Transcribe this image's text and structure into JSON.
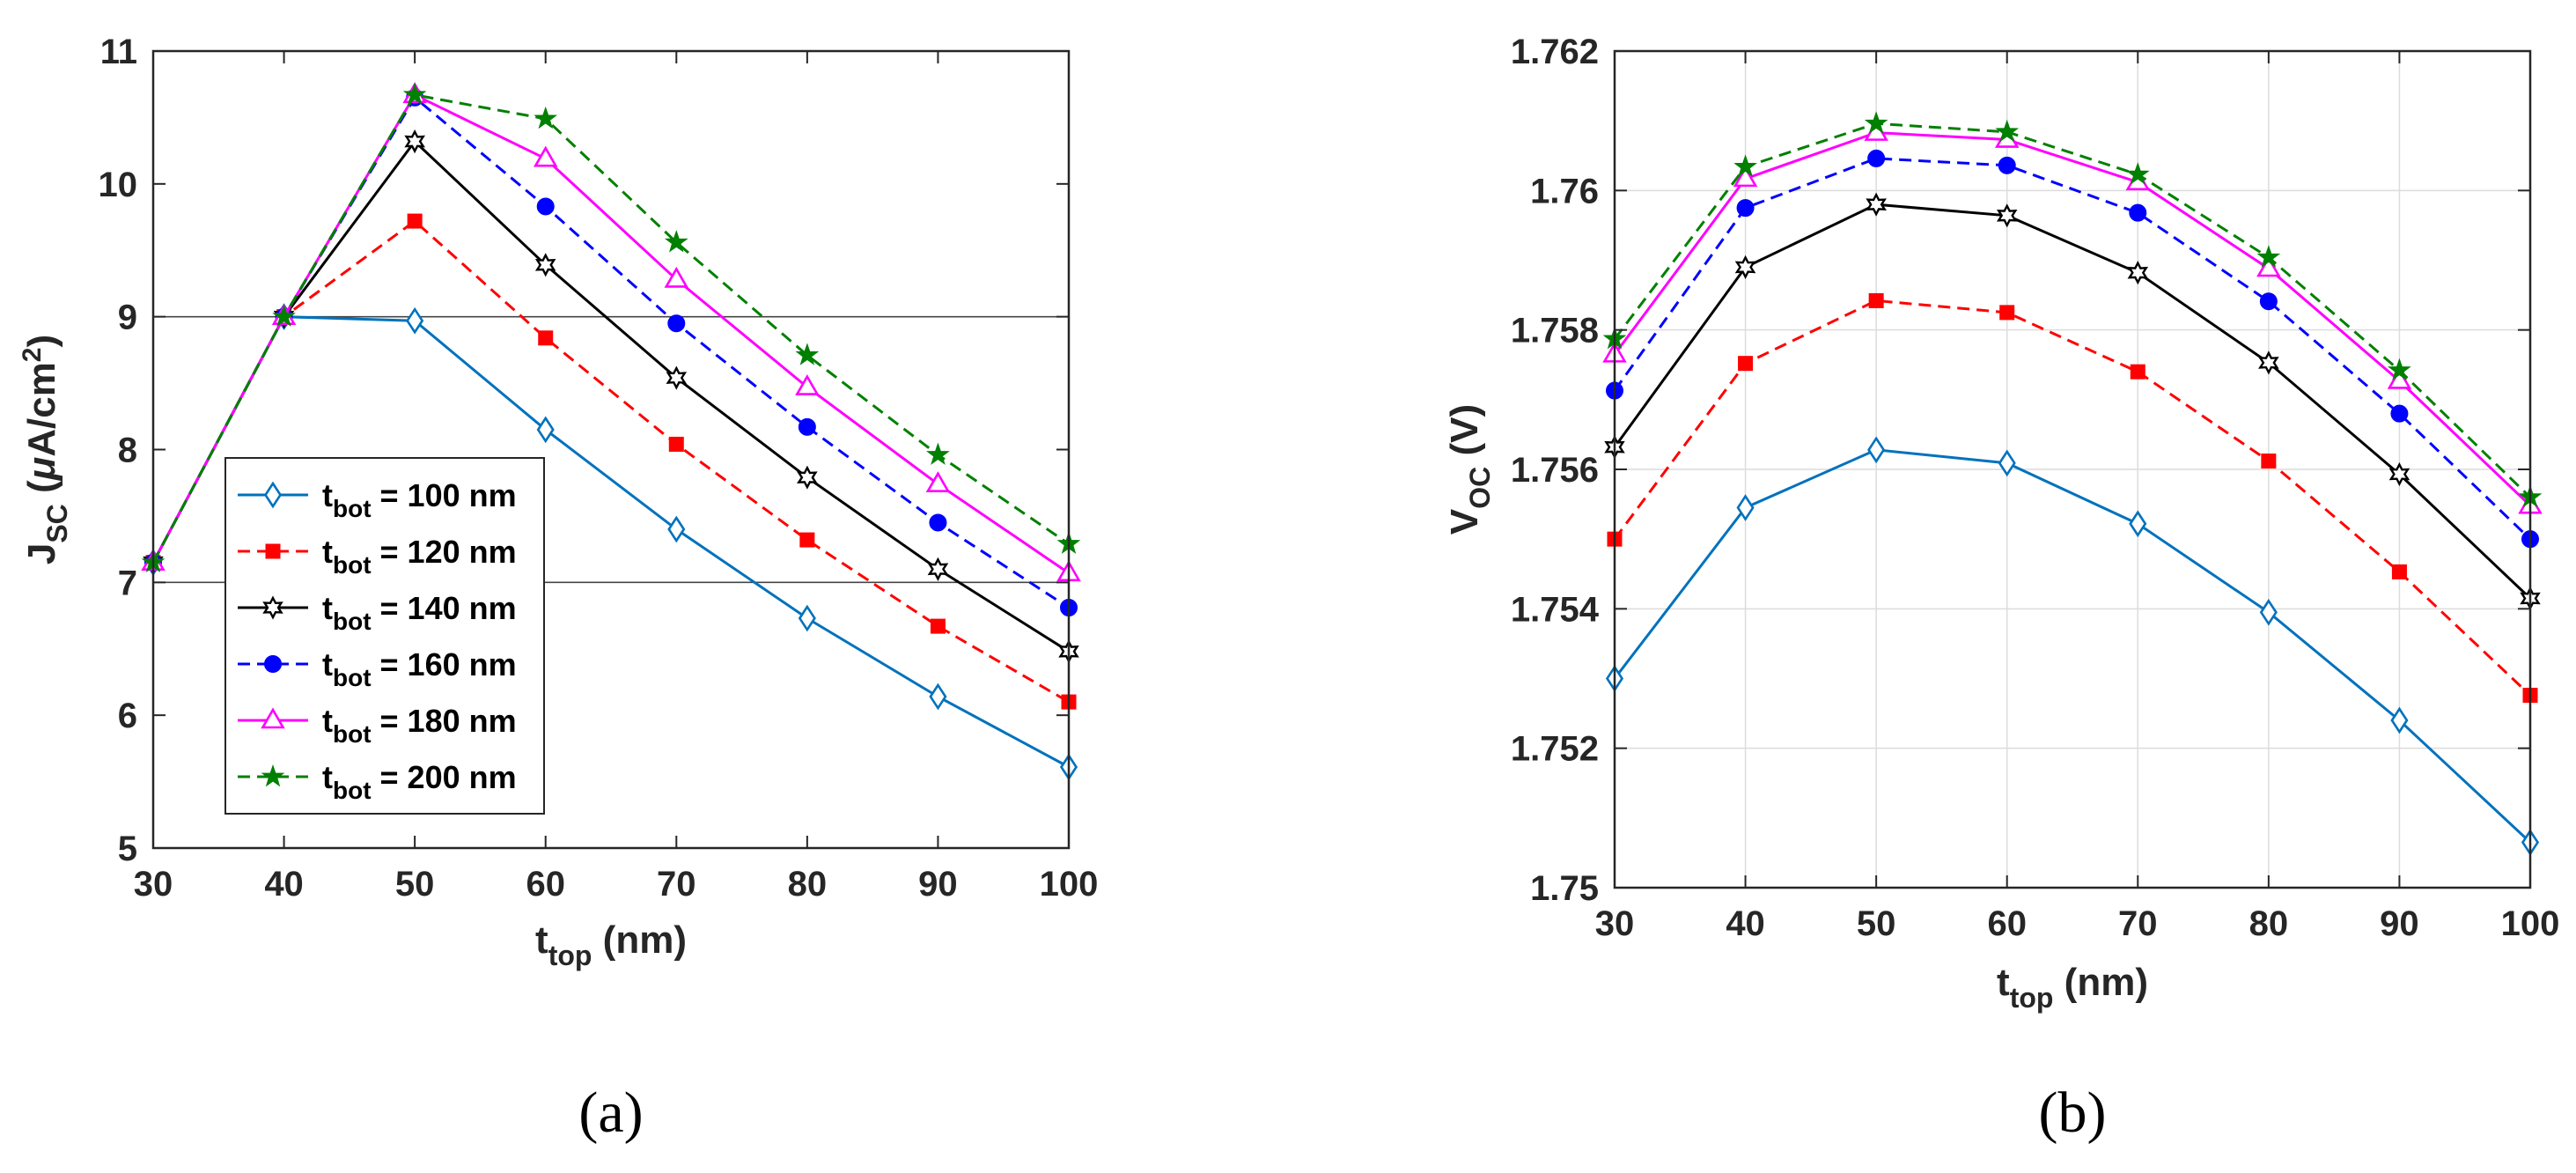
{
  "chart_data": [
    {
      "type": "line",
      "panel_label": "(a)",
      "xlabel": {
        "main": "t",
        "sub": "top",
        "rest": " (nm)"
      },
      "ylabel": {
        "main": "J",
        "sub": "SC",
        "rest": " (",
        "mu": "μ",
        "unit": "A/cm",
        "sup": "2",
        "close": ")"
      },
      "x": [
        30,
        40,
        50,
        60,
        70,
        80,
        90,
        100
      ],
      "xlim": [
        30,
        100
      ],
      "ylim": [
        5,
        11
      ],
      "xticks": [
        "30",
        "40",
        "50",
        "60",
        "70",
        "80",
        "90",
        "100"
      ],
      "yticks": [
        "5",
        "6",
        "7",
        "8",
        "9",
        "10",
        "11"
      ],
      "grid": false,
      "reference_lines_y": [
        9,
        7
      ],
      "legend_position": "bottom-left",
      "series": [
        {
          "name": "t_bot = 100 nm",
          "label_main": "t",
          "label_sub": "bot",
          "label_rest": " = 100 nm",
          "color": "#0072BD",
          "dash": "solid",
          "marker": "diamond-open",
          "values": [
            7.15,
            9.0,
            8.97,
            8.15,
            7.4,
            6.73,
            6.14,
            5.61
          ]
        },
        {
          "name": "t_bot = 120 nm",
          "label_main": "t",
          "label_sub": "bot",
          "label_rest": " = 120 nm",
          "color": "#FF0000",
          "dash": "dashed",
          "marker": "square-filled",
          "values": [
            7.15,
            9.0,
            9.72,
            8.84,
            8.04,
            7.32,
            6.67,
            6.1
          ]
        },
        {
          "name": "t_bot = 140 nm",
          "label_main": "t",
          "label_sub": "bot",
          "label_rest": " = 140 nm",
          "color": "#000000",
          "dash": "solid",
          "marker": "hexagram-open",
          "values": [
            7.15,
            9.0,
            10.32,
            9.39,
            8.54,
            7.79,
            7.1,
            6.48
          ]
        },
        {
          "name": "t_bot = 160 nm",
          "label_main": "t",
          "label_sub": "bot",
          "label_rest": " = 160 nm",
          "color": "#0000FF",
          "dash": "dashed",
          "marker": "circle-filled",
          "values": [
            7.15,
            9.0,
            10.65,
            9.83,
            8.95,
            8.17,
            7.45,
            6.81
          ]
        },
        {
          "name": "t_bot = 180 nm",
          "label_main": "t",
          "label_sub": "bot",
          "label_rest": " = 180 nm",
          "color": "#FF00FF",
          "dash": "solid",
          "marker": "triangle-open",
          "values": [
            7.15,
            9.0,
            10.67,
            10.19,
            9.28,
            8.47,
            7.74,
            7.07
          ]
        },
        {
          "name": "t_bot = 200 nm",
          "label_main": "t",
          "label_sub": "bot",
          "label_rest": " = 200 nm",
          "color": "#008000",
          "dash": "dashed",
          "marker": "star-filled",
          "values": [
            7.15,
            9.0,
            10.67,
            10.49,
            9.56,
            8.71,
            7.96,
            7.29
          ]
        }
      ]
    },
    {
      "type": "line",
      "panel_label": "(b)",
      "xlabel": {
        "main": "t",
        "sub": "top",
        "rest": " (nm)"
      },
      "ylabel": {
        "main": "V",
        "sub": "OC",
        "rest": " (V)"
      },
      "x": [
        30,
        40,
        50,
        60,
        70,
        80,
        90,
        100
      ],
      "xlim": [
        30,
        100
      ],
      "ylim": [
        1.75,
        1.762
      ],
      "xticks": [
        "30",
        "40",
        "50",
        "60",
        "70",
        "80",
        "90",
        "100"
      ],
      "yticks": [
        "1.75",
        "1.752",
        "1.754",
        "1.756",
        "1.758",
        "1.76",
        "1.762"
      ],
      "grid": true,
      "series": [
        {
          "name": "t_bot = 100 nm",
          "color": "#0072BD",
          "dash": "solid",
          "marker": "diamond-open",
          "values": [
            1.753,
            1.75545,
            1.75628,
            1.75609,
            1.75522,
            1.75395,
            1.7524,
            1.75065
          ]
        },
        {
          "name": "t_bot = 120 nm",
          "color": "#FF0000",
          "dash": "dashed",
          "marker": "square-filled",
          "values": [
            1.755,
            1.75752,
            1.75842,
            1.75825,
            1.7574,
            1.75612,
            1.75453,
            1.75276
          ]
        },
        {
          "name": "t_bot = 140 nm",
          "color": "#000000",
          "dash": "solid",
          "marker": "hexagram-open",
          "values": [
            1.75632,
            1.7589,
            1.7598,
            1.75964,
            1.75882,
            1.75753,
            1.75593,
            1.75415
          ]
        },
        {
          "name": "t_bot = 160 nm",
          "color": "#0000FF",
          "dash": "dashed",
          "marker": "circle-filled",
          "values": [
            1.75713,
            1.75975,
            1.76046,
            1.76036,
            1.75968,
            1.75841,
            1.7568,
            1.755
          ]
        },
        {
          "name": "t_bot = 180 nm",
          "color": "#FF00FF",
          "dash": "solid",
          "marker": "triangle-open",
          "values": [
            1.75765,
            1.76017,
            1.76083,
            1.76073,
            1.76012,
            1.75888,
            1.75727,
            1.75548
          ]
        },
        {
          "name": "t_bot = 200 nm",
          "color": "#008000",
          "dash": "dashed",
          "marker": "star-filled",
          "values": [
            1.75787,
            1.76034,
            1.76096,
            1.76084,
            1.76023,
            1.75904,
            1.75742,
            1.7556
          ]
        }
      ]
    }
  ]
}
